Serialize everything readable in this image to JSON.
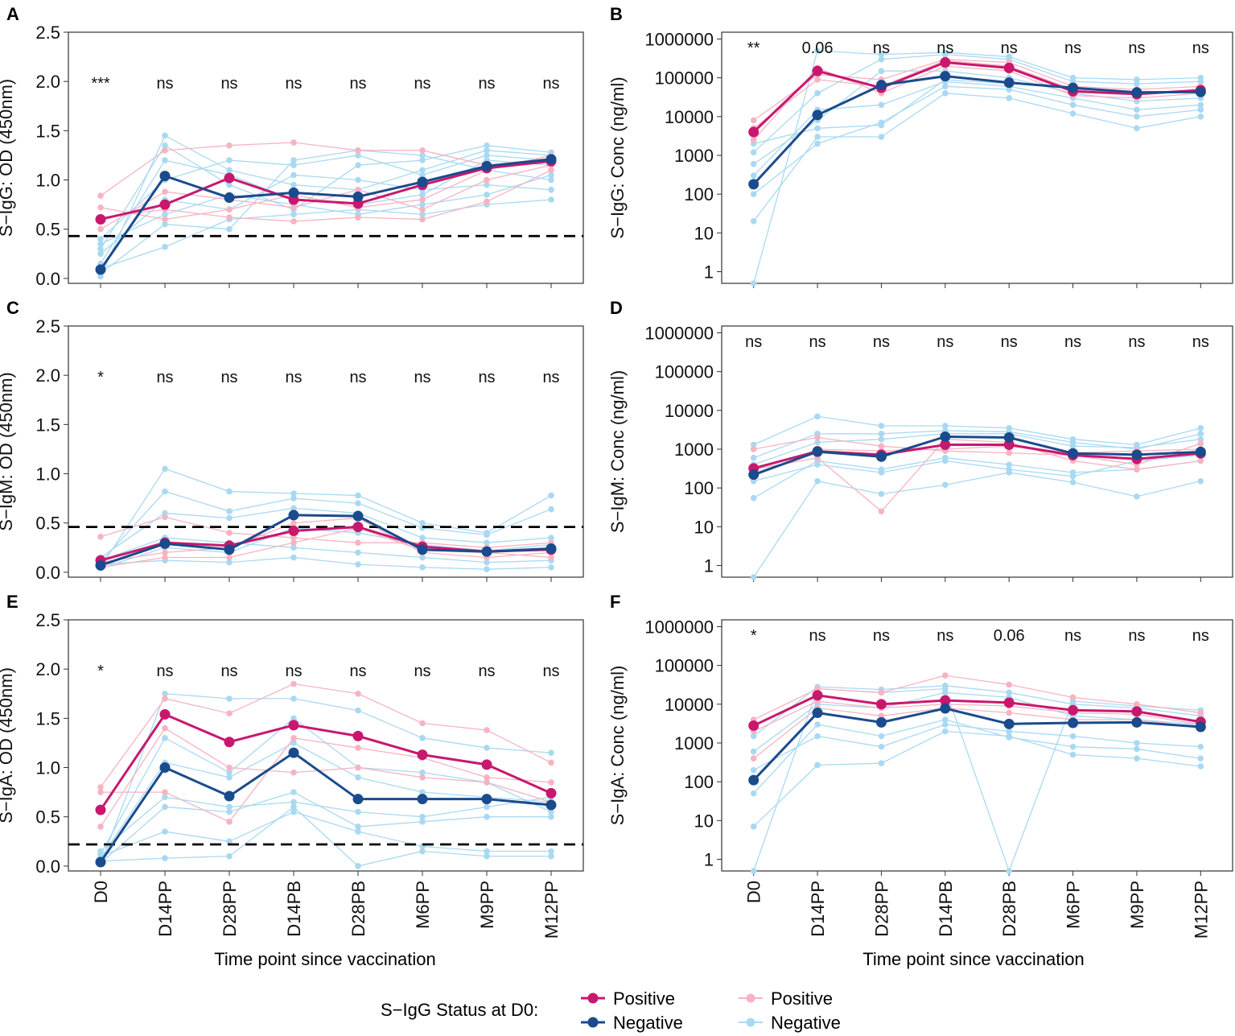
{
  "colors": {
    "positive_mean": "#c8186e",
    "negative_mean": "#1a4b8c",
    "positive_individual": "#f7b3c1",
    "negative_individual": "#a9d9f2",
    "cutoff": "#000000"
  },
  "x_axis_title": "Time point since vaccination",
  "legend": {
    "title": "S−IgG Status at D0:",
    "mean_entries": [
      "Positive",
      "Negative"
    ],
    "individual_entries": [
      "Positive",
      "Negative"
    ]
  },
  "chart_data": [
    {
      "panel": "A",
      "type": "line",
      "scale": "linear",
      "ylabel": "S−IgG: OD (450nm)",
      "ylim": [
        -0.05,
        2.5
      ],
      "yticks": [
        "0.0",
        "0.5",
        "1.0",
        "1.5",
        "2.0",
        "2.5"
      ],
      "ytick_values": [
        0,
        0.5,
        1,
        1.5,
        2,
        2.5
      ],
      "categories": [
        "D0",
        "D14PP",
        "D28PP",
        "D14PB",
        "D28PB",
        "M6PP",
        "M9PP",
        "M12PP"
      ],
      "cutoff": 0.43,
      "significance": [
        "***",
        "ns",
        "ns",
        "ns",
        "ns",
        "ns",
        "ns",
        "ns"
      ],
      "series": [
        {
          "name": "Positive",
          "values": [
            0.6,
            0.75,
            1.02,
            0.8,
            0.76,
            0.95,
            1.12,
            1.19
          ]
        },
        {
          "name": "Negative",
          "values": [
            0.09,
            1.04,
            0.82,
            0.87,
            0.83,
            0.98,
            1.14,
            1.21
          ]
        }
      ],
      "individual": {
        "positive": [
          [
            0.84,
            1.3,
            1.35,
            1.38,
            1.3,
            1.3,
            1.15,
            1.22
          ],
          [
            0.62,
            0.7,
            0.62,
            0.58,
            0.62,
            0.6,
            0.78,
            1.1
          ],
          [
            0.5,
            0.88,
            0.8,
            0.72,
            0.9,
            0.7,
            1.0,
            1.15
          ],
          [
            0.72,
            0.6,
            0.7,
            0.85,
            0.72,
            0.8,
            1.1,
            1.25
          ]
        ],
        "negative": [
          [
            0.02,
            1.45,
            1.1,
            0.95,
            0.9,
            1.1,
            1.3,
            1.25
          ],
          [
            0.05,
            0.55,
            0.5,
            1.2,
            1.3,
            1.25,
            1.1,
            1.0
          ],
          [
            0.1,
            0.32,
            0.6,
            0.65,
            0.7,
            0.65,
            0.75,
            0.8
          ],
          [
            0.15,
            1.2,
            1.05,
            0.8,
            0.75,
            0.85,
            1.2,
            1.15
          ],
          [
            0.25,
            0.8,
            0.7,
            1.05,
            1.0,
            0.9,
            0.95,
            0.9
          ],
          [
            0.3,
            1.35,
            0.95,
            0.7,
            1.15,
            1.2,
            1.35,
            1.28
          ],
          [
            0.35,
            0.65,
            0.85,
            0.75,
            0.65,
            0.75,
            0.85,
            1.05
          ],
          [
            0.4,
            1.0,
            1.2,
            1.15,
            1.25,
            1.05,
            1.25,
            1.2
          ]
        ]
      }
    },
    {
      "panel": "B",
      "type": "line",
      "scale": "log",
      "ylabel": "S−IgG: Conc (ng/ml)",
      "ylim": [
        0.5,
        1500000
      ],
      "yticks": [
        "1",
        "10",
        "100",
        "1000",
        "10000",
        "100000",
        "1000000"
      ],
      "ytick_values": [
        1,
        10,
        100,
        1000,
        10000,
        100000,
        1000000
      ],
      "categories": [
        "D0",
        "D14PP",
        "D28PP",
        "D14PB",
        "D28PB",
        "M6PP",
        "M9PP",
        "M12PP"
      ],
      "significance": [
        "**",
        "0.06",
        "ns",
        "ns",
        "ns",
        "ns",
        "ns",
        "ns"
      ],
      "series": [
        {
          "name": "Positive",
          "values": [
            4000,
            150000,
            55000,
            250000,
            180000,
            45000,
            38000,
            48000
          ]
        },
        {
          "name": "Negative",
          "values": [
            180,
            11000,
            65000,
            110000,
            75000,
            55000,
            42000,
            43000
          ]
        }
      ],
      "individual": {
        "positive": [
          [
            8000,
            120000,
            90000,
            300000,
            250000,
            60000,
            50000,
            60000
          ],
          [
            2500,
            180000,
            40000,
            200000,
            150000,
            35000,
            30000,
            40000
          ],
          [
            5000,
            90000,
            60000,
            280000,
            200000,
            50000,
            42000,
            45000
          ]
        ],
        "negative": [
          [
            0.5,
            500000,
            400000,
            450000,
            350000,
            100000,
            90000,
            100000
          ],
          [
            20,
            3000,
            3000,
            40000,
            30000,
            12000,
            5000,
            10000
          ],
          [
            100,
            2000,
            7000,
            60000,
            50000,
            20000,
            10000,
            15000
          ],
          [
            300,
            15000,
            20000,
            80000,
            60000,
            30000,
            15000,
            20000
          ],
          [
            600,
            8000,
            150000,
            150000,
            100000,
            40000,
            25000,
            30000
          ],
          [
            1200,
            40000,
            300000,
            400000,
            300000,
            80000,
            70000,
            80000
          ],
          [
            2000,
            5000,
            6000,
            90000,
            70000,
            60000,
            40000,
            50000
          ]
        ]
      }
    },
    {
      "panel": "C",
      "type": "line",
      "scale": "linear",
      "ylabel": "S−IgM: OD (450nm)",
      "ylim": [
        -0.05,
        2.5
      ],
      "yticks": [
        "0.0",
        "0.5",
        "1.0",
        "1.5",
        "2.0",
        "2.5"
      ],
      "ytick_values": [
        0,
        0.5,
        1,
        1.5,
        2,
        2.5
      ],
      "categories": [
        "D0",
        "D14PP",
        "D28PP",
        "D14PB",
        "D28PB",
        "M6PP",
        "M9PP",
        "M12PP"
      ],
      "cutoff": 0.46,
      "significance": [
        "*",
        "ns",
        "ns",
        "ns",
        "ns",
        "ns",
        "ns",
        "ns"
      ],
      "series": [
        {
          "name": "Positive",
          "values": [
            0.12,
            0.3,
            0.27,
            0.42,
            0.46,
            0.26,
            0.21,
            0.23
          ]
        },
        {
          "name": "Negative",
          "values": [
            0.07,
            0.29,
            0.23,
            0.58,
            0.57,
            0.23,
            0.21,
            0.24
          ]
        }
      ],
      "individual": {
        "positive": [
          [
            0.36,
            0.56,
            0.4,
            0.35,
            0.3,
            0.3,
            0.25,
            0.3
          ],
          [
            0.1,
            0.2,
            0.25,
            0.5,
            0.55,
            0.2,
            0.15,
            0.2
          ],
          [
            0.05,
            0.15,
            0.15,
            0.3,
            0.45,
            0.22,
            0.2,
            0.15
          ]
        ],
        "negative": [
          [
            0.05,
            1.05,
            0.82,
            0.8,
            0.78,
            0.5,
            0.4,
            0.78
          ],
          [
            0.1,
            0.82,
            0.62,
            0.75,
            0.7,
            0.45,
            0.38,
            0.64
          ],
          [
            0.08,
            0.12,
            0.1,
            0.15,
            0.08,
            0.05,
            0.03,
            0.05
          ],
          [
            0.15,
            0.6,
            0.55,
            0.65,
            0.6,
            0.35,
            0.3,
            0.35
          ],
          [
            0.12,
            0.35,
            0.3,
            0.25,
            0.2,
            0.15,
            0.1,
            0.12
          ],
          [
            0.04,
            0.25,
            0.2,
            0.45,
            0.4,
            0.28,
            0.22,
            0.28
          ]
        ]
      }
    },
    {
      "panel": "D",
      "type": "line",
      "scale": "log",
      "ylabel": "S−IgM: Conc (ng/ml)",
      "ylim": [
        0.5,
        1500000
      ],
      "yticks": [
        "1",
        "10",
        "100",
        "1000",
        "10000",
        "100000",
        "1000000"
      ],
      "ytick_values": [
        1,
        10,
        100,
        1000,
        10000,
        100000,
        1000000
      ],
      "categories": [
        "D0",
        "D14PP",
        "D28PP",
        "D14PB",
        "D28PB",
        "M6PP",
        "M9PP",
        "M12PP"
      ],
      "significance": [
        "ns",
        "ns",
        "ns",
        "ns",
        "ns",
        "ns",
        "ns",
        "ns"
      ],
      "series": [
        {
          "name": "Positive",
          "values": [
            320,
            880,
            720,
            1300,
            1300,
            700,
            560,
            780
          ]
        },
        {
          "name": "Negative",
          "values": [
            220,
            860,
            640,
            2100,
            2000,
            780,
            720,
            850
          ]
        }
      ],
      "individual": {
        "positive": [
          [
            1000,
            2000,
            1200,
            900,
            800,
            700,
            400,
            1400
          ],
          [
            300,
            600,
            25,
            1800,
            1500,
            500,
            300,
            500
          ],
          [
            200,
            1000,
            900,
            1000,
            1200,
            800,
            900,
            1000
          ]
        ],
        "negative": [
          [
            0.5,
            150,
            70,
            120,
            250,
            140,
            60,
            150
          ],
          [
            55,
            500,
            300,
            600,
            400,
            250,
            300,
            500
          ],
          [
            1300,
            7000,
            4000,
            4000,
            3500,
            1800,
            1300,
            3500
          ],
          [
            600,
            2500,
            2500,
            3000,
            2800,
            1500,
            1000,
            2500
          ],
          [
            400,
            1500,
            1800,
            2500,
            2500,
            1200,
            1100,
            1800
          ],
          [
            150,
            400,
            250,
            500,
            300,
            200,
            500,
            700
          ]
        ]
      }
    },
    {
      "panel": "E",
      "type": "line",
      "scale": "linear",
      "ylabel": "S−IgA: OD (450nm)",
      "ylim": [
        -0.05,
        2.5
      ],
      "yticks": [
        "0.0",
        "0.5",
        "1.0",
        "1.5",
        "2.0",
        "2.5"
      ],
      "ytick_values": [
        0,
        0.5,
        1,
        1.5,
        2,
        2.5
      ],
      "categories": [
        "D0",
        "D14PP",
        "D28PP",
        "D14PB",
        "D28PB",
        "M6PP",
        "M9PP",
        "M12PP"
      ],
      "cutoff": 0.22,
      "significance": [
        "*",
        "ns",
        "ns",
        "ns",
        "ns",
        "ns",
        "ns",
        "ns"
      ],
      "series": [
        {
          "name": "Positive",
          "values": [
            0.57,
            1.54,
            1.26,
            1.43,
            1.32,
            1.13,
            1.03,
            0.74
          ]
        },
        {
          "name": "Negative",
          "values": [
            0.04,
            1.0,
            0.71,
            1.15,
            0.68,
            0.68,
            0.68,
            0.62
          ]
        }
      ],
      "individual": {
        "positive": [
          [
            0.8,
            1.7,
            1.55,
            1.85,
            1.75,
            1.45,
            1.38,
            1.05
          ],
          [
            0.4,
            1.4,
            1.0,
            0.95,
            1.0,
            0.9,
            0.85,
            0.65
          ],
          [
            0.75,
            0.75,
            0.45,
            1.3,
            1.2,
            1.1,
            0.9,
            0.85
          ]
        ],
        "negative": [
          [
            0.02,
            1.75,
            1.7,
            1.7,
            1.58,
            1.3,
            1.2,
            1.15
          ],
          [
            0.05,
            0.08,
            0.1,
            0.6,
            0.0,
            0.15,
            0.1,
            0.1
          ],
          [
            0.1,
            0.35,
            0.25,
            0.55,
            0.35,
            0.2,
            0.15,
            0.15
          ],
          [
            0.12,
            1.3,
            0.95,
            1.5,
            1.0,
            0.95,
            0.85,
            0.55
          ],
          [
            0.03,
            0.6,
            0.55,
            0.75,
            0.4,
            0.45,
            0.5,
            0.5
          ],
          [
            0.08,
            1.05,
            0.9,
            1.25,
            0.9,
            0.75,
            0.7,
            0.65
          ],
          [
            0.15,
            0.7,
            0.6,
            0.65,
            0.55,
            0.5,
            0.6,
            0.7
          ]
        ]
      }
    },
    {
      "panel": "F",
      "type": "line",
      "scale": "log",
      "ylabel": "S−IgA: Conc (ng/ml)",
      "ylim": [
        0.5,
        1500000
      ],
      "yticks": [
        "1",
        "10",
        "100",
        "1000",
        "10000",
        "100000",
        "1000000"
      ],
      "ytick_values": [
        1,
        10,
        100,
        1000,
        10000,
        100000,
        1000000
      ],
      "categories": [
        "D0",
        "D14PP",
        "D28PP",
        "D14PB",
        "D28PB",
        "M6PP",
        "M9PP",
        "M12PP"
      ],
      "significance": [
        "*",
        "ns",
        "ns",
        "ns",
        "0.06",
        "ns",
        "ns",
        "ns"
      ],
      "series": [
        {
          "name": "Positive",
          "values": [
            2800,
            17000,
            10000,
            12500,
            11000,
            7000,
            6500,
            3500
          ]
        },
        {
          "name": "Negative",
          "values": [
            110,
            6000,
            3400,
            7800,
            3100,
            3300,
            3400,
            2600
          ]
        }
      ],
      "individual": {
        "positive": [
          [
            4000,
            25000,
            20000,
            55000,
            32000,
            15000,
            10000,
            6000
          ],
          [
            400,
            8000,
            5000,
            8000,
            6000,
            4000,
            4000,
            2500
          ],
          [
            2000,
            12000,
            8000,
            10000,
            9000,
            6000,
            5500,
            3000
          ]
        ],
        "negative": [
          [
            0.5,
            25000,
            20000,
            25000,
            0.5,
            12000,
            9000,
            7000
          ],
          [
            7,
            270,
            300,
            2000,
            1500,
            500,
            400,
            250
          ],
          [
            50,
            3000,
            1500,
            4000,
            1400,
            800,
            700,
            400
          ],
          [
            200,
            1500,
            800,
            3000,
            2000,
            1500,
            1000,
            800
          ],
          [
            600,
            10000,
            8000,
            20000,
            15000,
            5000,
            4000,
            3000
          ],
          [
            1500,
            28000,
            24000,
            30000,
            20000,
            10000,
            8000,
            5000
          ]
        ]
      }
    }
  ]
}
